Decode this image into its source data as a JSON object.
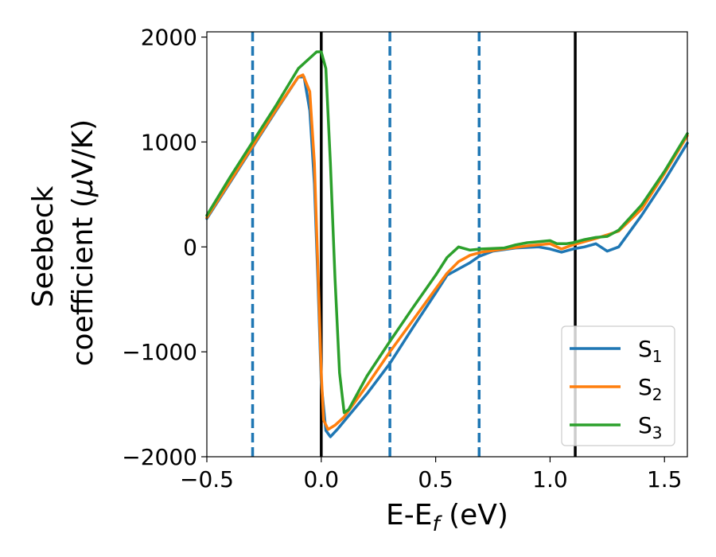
{
  "chart_data": {
    "type": "line",
    "xlabel": {
      "main": "E-E",
      "sub": "f",
      "unit": " (eV)"
    },
    "ylabel": {
      "line1": "Seebeck",
      "line2": "coefficient  (",
      "mu": "μ",
      "unit": "V/K)"
    },
    "xlim": [
      -0.5,
      1.6
    ],
    "ylim": [
      -2000,
      2050
    ],
    "xticks": [
      {
        "value": -0.5,
        "label": "−0.5"
      },
      {
        "value": 0.0,
        "label": "0.0"
      },
      {
        "value": 0.5,
        "label": "0.5"
      },
      {
        "value": 1.0,
        "label": "1.0"
      },
      {
        "value": 1.5,
        "label": "1.5"
      }
    ],
    "yticks": [
      {
        "value": -2000,
        "label": "−2000"
      },
      {
        "value": -1000,
        "label": "−1000"
      },
      {
        "value": 0,
        "label": "0"
      },
      {
        "value": 1000,
        "label": "1000"
      },
      {
        "value": 2000,
        "label": "2000"
      }
    ],
    "grid": false,
    "legend_position": "lower-right",
    "vlines_solid": [
      0.0,
      1.11
    ],
    "vlines_dashed": [
      -0.3,
      0.3,
      0.69
    ],
    "vline_solid_color": "#000000",
    "vline_dashed_color": "#1f77b4",
    "series": [
      {
        "name": "S",
        "sub": "1",
        "color": "#1f77b4",
        "points": [
          [
            -0.5,
            270
          ],
          [
            -0.4,
            610
          ],
          [
            -0.3,
            950
          ],
          [
            -0.2,
            1290
          ],
          [
            -0.1,
            1620
          ],
          [
            -0.075,
            1620
          ],
          [
            -0.05,
            1300
          ],
          [
            -0.03,
            600
          ],
          [
            -0.015,
            -300
          ],
          [
            0.0,
            -1300
          ],
          [
            0.02,
            -1750
          ],
          [
            0.04,
            -1810
          ],
          [
            0.07,
            -1740
          ],
          [
            0.1,
            -1660
          ],
          [
            0.2,
            -1400
          ],
          [
            0.3,
            -1110
          ],
          [
            0.4,
            -770
          ],
          [
            0.5,
            -440
          ],
          [
            0.55,
            -270
          ],
          [
            0.6,
            -210
          ],
          [
            0.65,
            -150
          ],
          [
            0.69,
            -90
          ],
          [
            0.75,
            -40
          ],
          [
            0.85,
            -10
          ],
          [
            0.95,
            0
          ],
          [
            1.0,
            -20
          ],
          [
            1.05,
            -50
          ],
          [
            1.1,
            -20
          ],
          [
            1.15,
            0
          ],
          [
            1.2,
            30
          ],
          [
            1.25,
            -40
          ],
          [
            1.3,
            0
          ],
          [
            1.4,
            300
          ],
          [
            1.5,
            630
          ],
          [
            1.6,
            990
          ]
        ]
      },
      {
        "name": "S",
        "sub": "2",
        "color": "#ff7f0e",
        "points": [
          [
            -0.5,
            280
          ],
          [
            -0.4,
            620
          ],
          [
            -0.3,
            960
          ],
          [
            -0.2,
            1300
          ],
          [
            -0.1,
            1620
          ],
          [
            -0.08,
            1640
          ],
          [
            -0.05,
            1480
          ],
          [
            -0.03,
            800
          ],
          [
            -0.01,
            -500
          ],
          [
            0.0,
            -1200
          ],
          [
            0.01,
            -1650
          ],
          [
            0.03,
            -1740
          ],
          [
            0.06,
            -1700
          ],
          [
            0.1,
            -1620
          ],
          [
            0.2,
            -1320
          ],
          [
            0.3,
            -1000
          ],
          [
            0.4,
            -700
          ],
          [
            0.5,
            -400
          ],
          [
            0.55,
            -250
          ],
          [
            0.6,
            -140
          ],
          [
            0.65,
            -80
          ],
          [
            0.7,
            -50
          ],
          [
            0.8,
            -20
          ],
          [
            0.9,
            10
          ],
          [
            1.0,
            30
          ],
          [
            1.05,
            -20
          ],
          [
            1.1,
            20
          ],
          [
            1.15,
            50
          ],
          [
            1.2,
            80
          ],
          [
            1.3,
            150
          ],
          [
            1.4,
            360
          ],
          [
            1.5,
            700
          ],
          [
            1.6,
            1060
          ]
        ]
      },
      {
        "name": "S",
        "sub": "3",
        "color": "#2ca02c",
        "points": [
          [
            -0.5,
            300
          ],
          [
            -0.4,
            660
          ],
          [
            -0.3,
            1000
          ],
          [
            -0.2,
            1340
          ],
          [
            -0.1,
            1700
          ],
          [
            -0.05,
            1800
          ],
          [
            -0.02,
            1860
          ],
          [
            0.0,
            1860
          ],
          [
            0.02,
            1700
          ],
          [
            0.04,
            800
          ],
          [
            0.06,
            -300
          ],
          [
            0.08,
            -1200
          ],
          [
            0.1,
            -1580
          ],
          [
            0.12,
            -1550
          ],
          [
            0.2,
            -1230
          ],
          [
            0.3,
            -900
          ],
          [
            0.4,
            -580
          ],
          [
            0.5,
            -270
          ],
          [
            0.55,
            -100
          ],
          [
            0.6,
            0
          ],
          [
            0.65,
            -30
          ],
          [
            0.7,
            -20
          ],
          [
            0.8,
            -10
          ],
          [
            0.85,
            20
          ],
          [
            0.9,
            40
          ],
          [
            0.95,
            50
          ],
          [
            1.0,
            60
          ],
          [
            1.03,
            30
          ],
          [
            1.07,
            30
          ],
          [
            1.1,
            40
          ],
          [
            1.15,
            70
          ],
          [
            1.2,
            90
          ],
          [
            1.25,
            100
          ],
          [
            1.3,
            160
          ],
          [
            1.4,
            400
          ],
          [
            1.5,
            720
          ],
          [
            1.6,
            1080
          ]
        ]
      }
    ]
  }
}
